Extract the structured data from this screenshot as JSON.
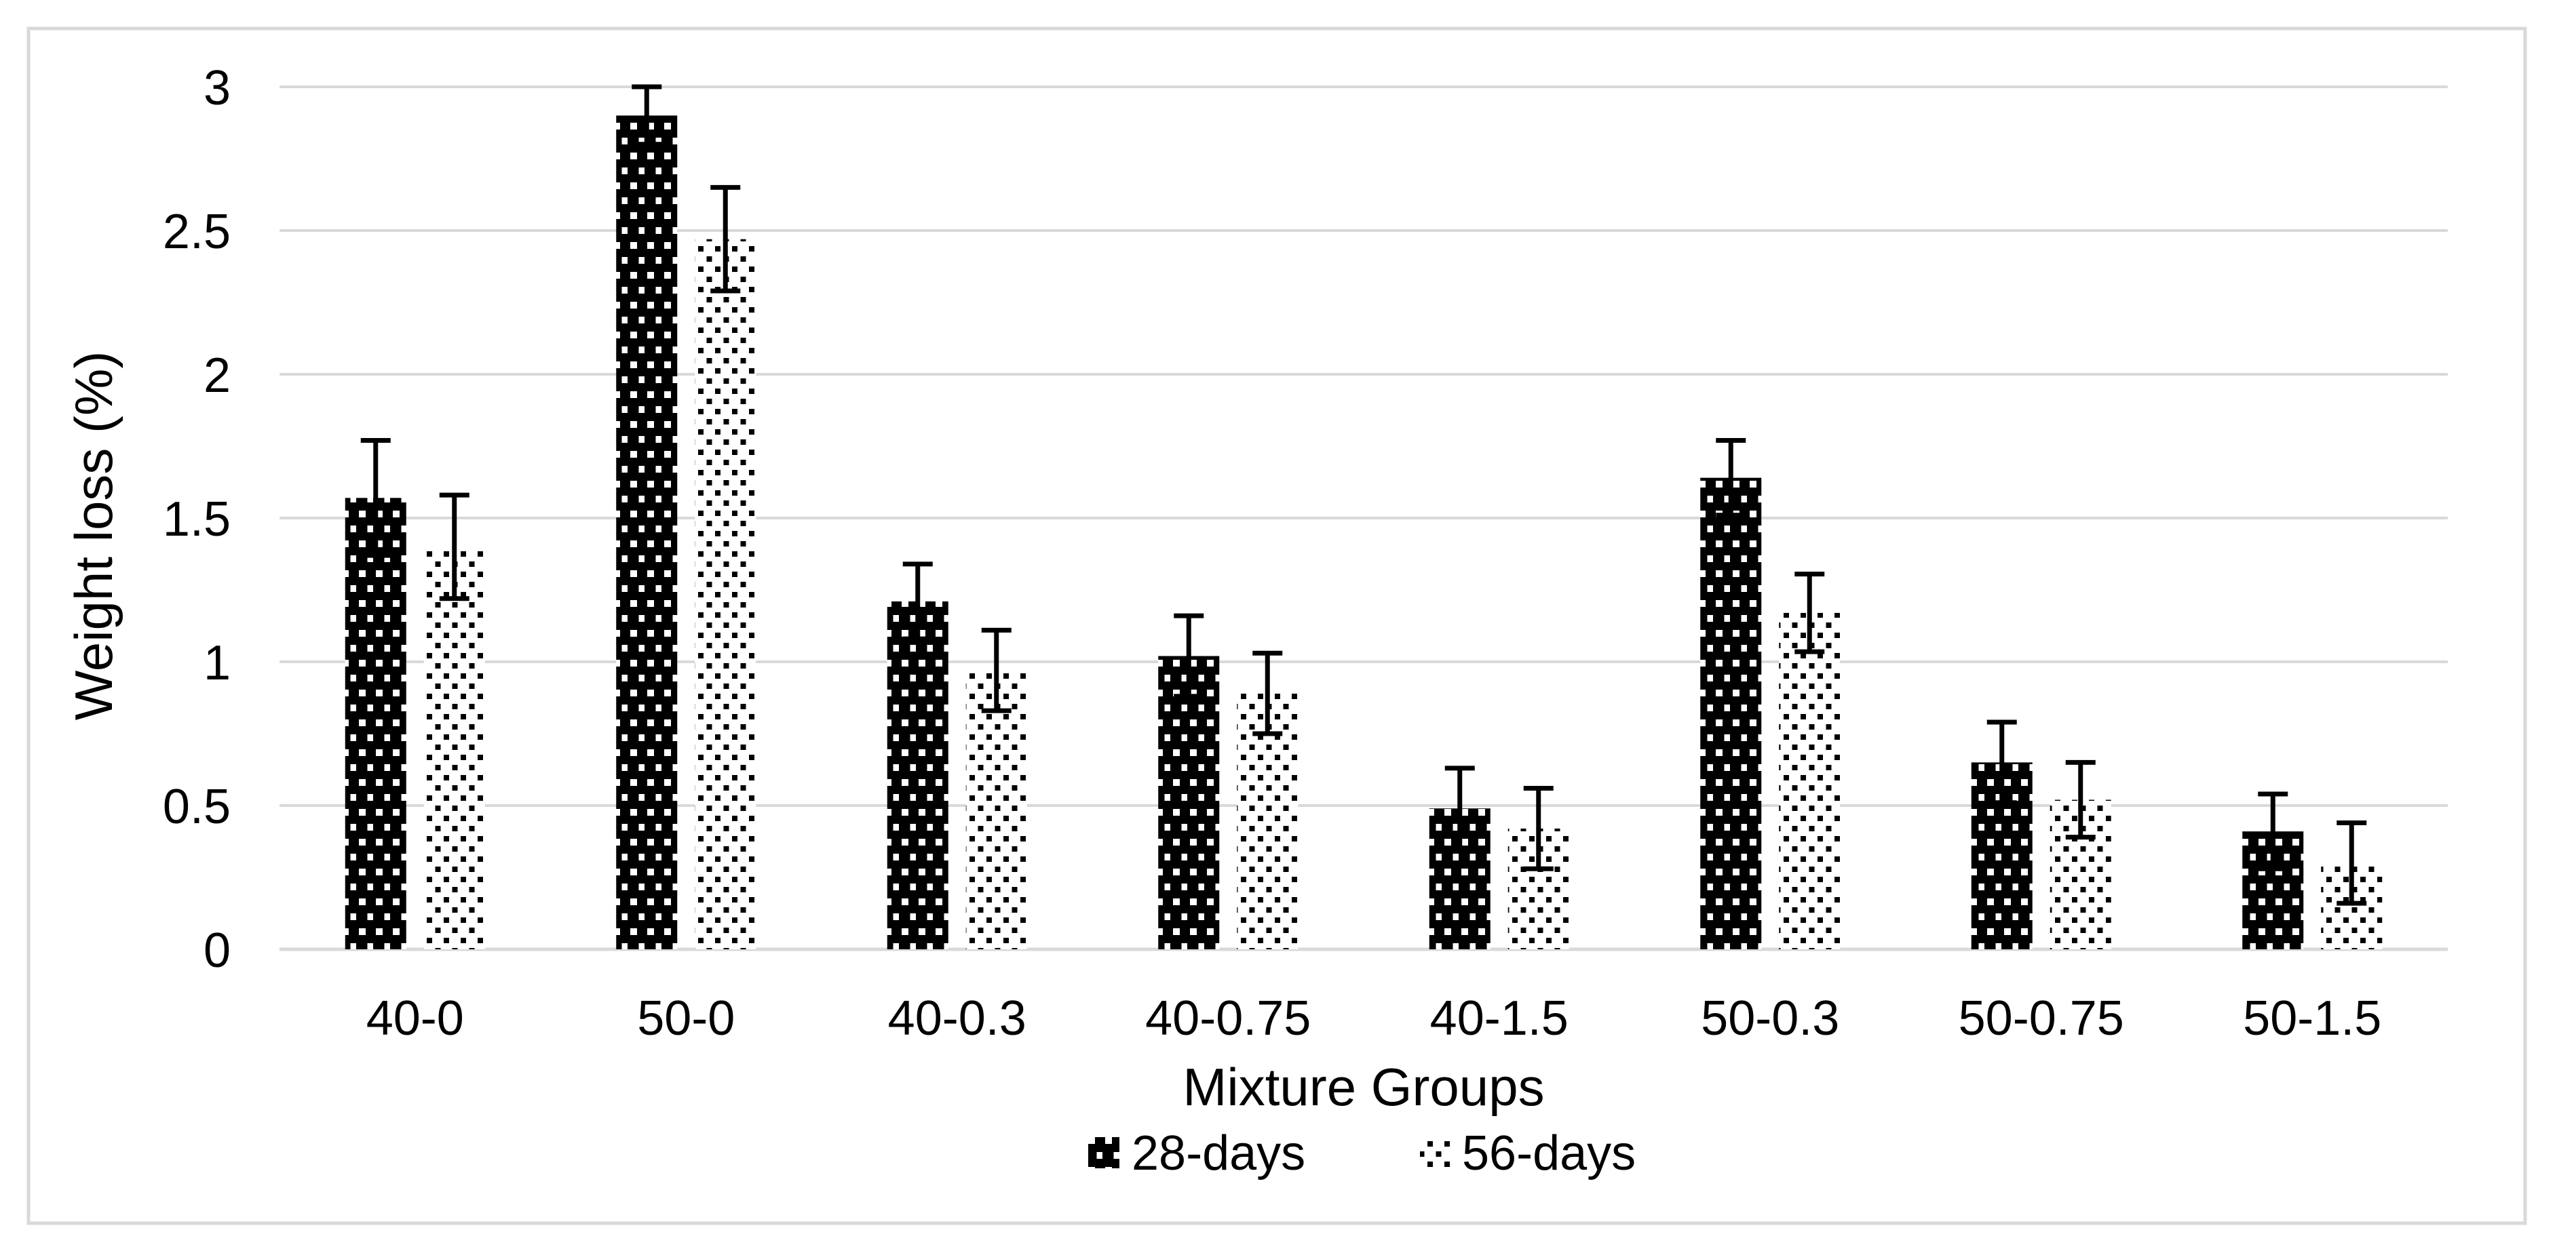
{
  "chart_data": {
    "type": "bar",
    "title": "",
    "xlabel": "Mixture Groups",
    "ylabel": "Weight loss (%)",
    "categories": [
      "40-0",
      "50-0",
      "40-0.3",
      "40-0.75",
      "40-1.5",
      "50-0.3",
      "50-0.75",
      "50-1.5"
    ],
    "series": [
      {
        "name": "28-days",
        "values": [
          1.57,
          2.9,
          1.21,
          1.02,
          0.49,
          1.64,
          0.65,
          0.41
        ],
        "errors": [
          0.2,
          0.1,
          0.13,
          0.14,
          0.14,
          0.13,
          0.14,
          0.13
        ],
        "pattern": "black-with-white-dots"
      },
      {
        "name": "56-days",
        "values": [
          1.4,
          2.47,
          0.97,
          0.89,
          0.42,
          1.17,
          0.52,
          0.3
        ],
        "errors": [
          0.18,
          0.18,
          0.14,
          0.14,
          0.14,
          0.135,
          0.13,
          0.14
        ],
        "pattern": "white-with-black-dots"
      }
    ],
    "ylim": [
      0,
      3
    ],
    "ytick_step": 0.5,
    "ytick_labels": [
      "0",
      "0.5",
      "1",
      "1.5",
      "2",
      "2.5",
      "3"
    ],
    "grid": "horizontal-gridlines-on",
    "legend_position": "bottom",
    "error_bars": "both-series-vertical-caps",
    "colors": {
      "gridline": "#d9d9d9",
      "frame_border": "#d9d9d9",
      "text": "#000000",
      "pattern_foreground": "#000000",
      "pattern_background": "#ffffff"
    }
  }
}
